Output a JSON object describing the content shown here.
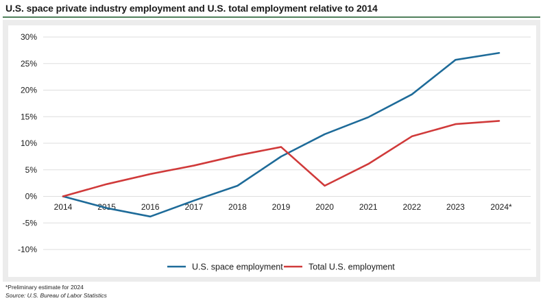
{
  "chart_data": {
    "type": "line",
    "title": "U.S. space private industry employment and U.S. total employment relative to 2014",
    "xlabel": "",
    "ylabel": "",
    "categories": [
      "2014",
      "2015",
      "2016",
      "2017",
      "2018",
      "2019",
      "2020",
      "2021",
      "2022",
      "2023",
      "2024*"
    ],
    "ylim": [
      -10,
      30
    ],
    "yticks": [
      30,
      25,
      20,
      15,
      10,
      5,
      0,
      -5,
      -10
    ],
    "ytick_labels": [
      "30%",
      "25%",
      "20%",
      "15%",
      "10%",
      "5%",
      "0%",
      "-5%",
      "-10%"
    ],
    "grid": true,
    "legend_position": "bottom-center",
    "series": [
      {
        "name": "U.S. space employment",
        "color": "#1e6b99",
        "values": [
          0,
          -2.2,
          -3.8,
          -0.8,
          2.0,
          7.5,
          11.7,
          14.9,
          19.2,
          25.7,
          27.0
        ]
      },
      {
        "name": "Total U.S. employment",
        "color": "#d03a3a",
        "values": [
          0,
          2.3,
          4.2,
          5.8,
          7.7,
          9.3,
          2.0,
          6.1,
          11.3,
          13.6,
          14.2
        ]
      }
    ],
    "footnote": "*Preliminary estimate for 2024",
    "source": "Source: U.S. Bureau of Labor Statistics"
  },
  "colors": {
    "title_rule": "#4f7f5b",
    "panel_background": "#ececec",
    "plot_background": "#ffffff",
    "gridline": "#dddddd"
  }
}
